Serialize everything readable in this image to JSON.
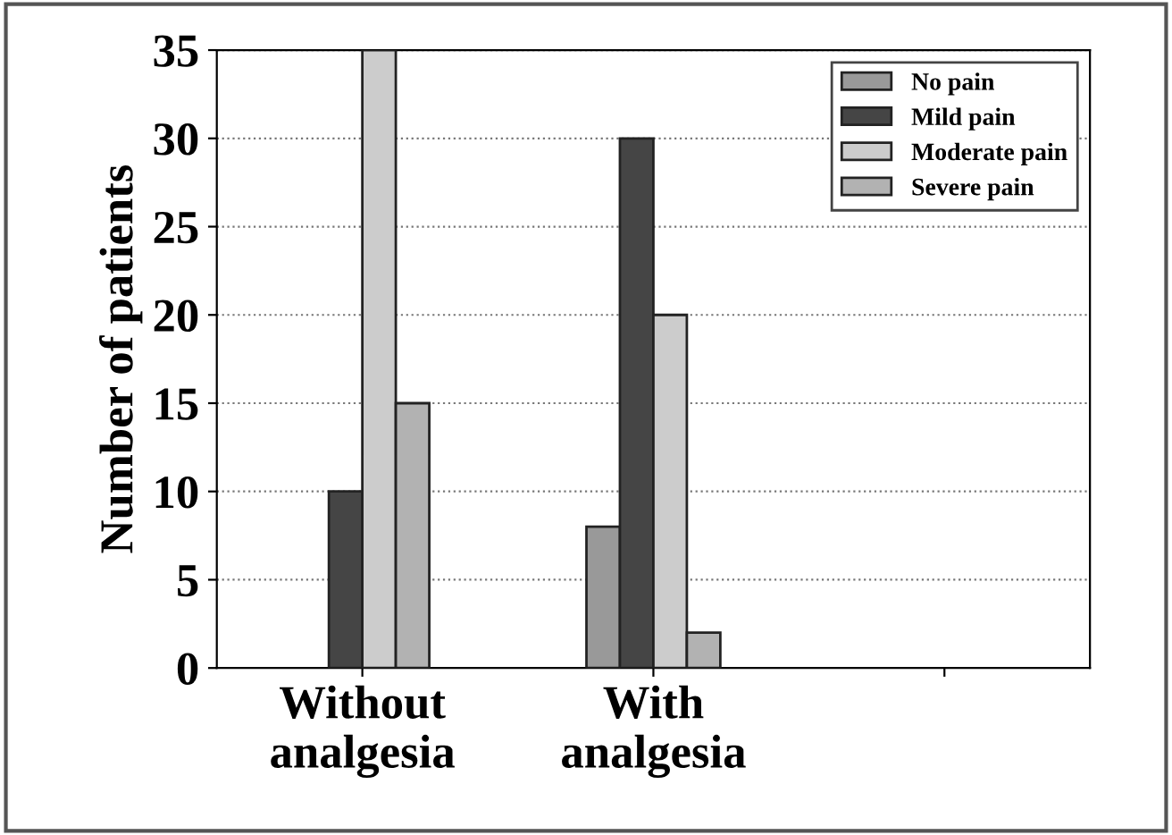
{
  "chart_data": {
    "type": "bar",
    "ylabel": "Number of patients",
    "categories": [
      "Without\nanalgesia",
      "With\nanalgesia",
      null
    ],
    "series": [
      {
        "name": "No pain",
        "color": "#999999",
        "values": [
          0,
          8,
          null
        ]
      },
      {
        "name": "Mild pain",
        "color": "#454545",
        "values": [
          10,
          30,
          null
        ]
      },
      {
        "name": "Moderate pain",
        "color": "#cccccc",
        "values": [
          35,
          20,
          null
        ]
      },
      {
        "name": "Severe pain",
        "color": "#b2b2b2",
        "values": [
          15,
          2,
          null
        ]
      }
    ],
    "ylim": [
      0,
      35
    ],
    "yticks": [
      0,
      5,
      10,
      15,
      20,
      25,
      30,
      35
    ],
    "grid": "y",
    "legend": "top right"
  }
}
